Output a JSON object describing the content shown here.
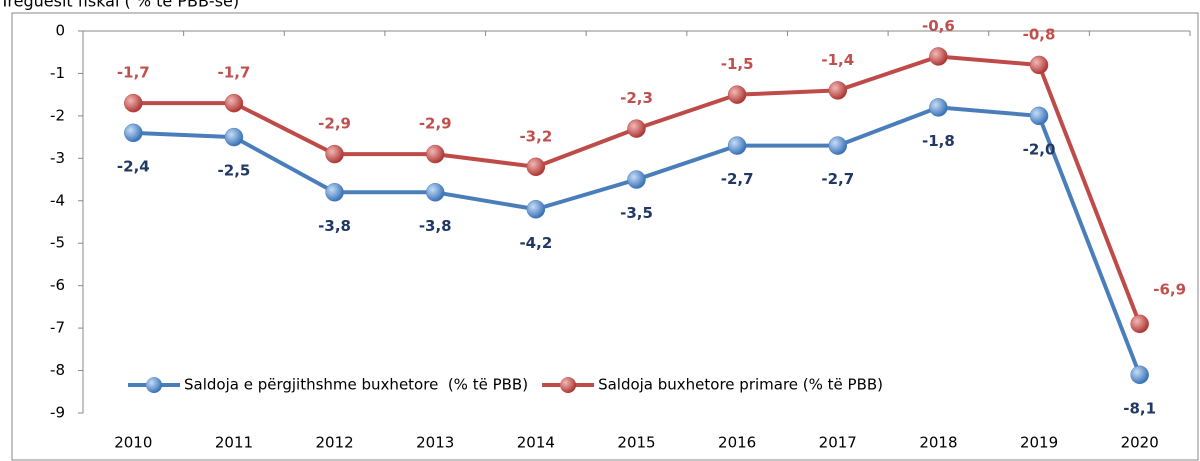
{
  "chart_data": {
    "type": "line",
    "title": "Treguesit fiskal ( % të PBB-së)",
    "categories": [
      "2010",
      "2011",
      "2012",
      "2013",
      "2014",
      "2015",
      "2016",
      "2017",
      "2018",
      "2019",
      "2020"
    ],
    "series": [
      {
        "name": "Saldoja e përgjithshme buxhetore  (% të PBB)",
        "color": "#4a7ebb",
        "label_color": "#1f3864",
        "values": [
          -2.4,
          -2.5,
          -3.8,
          -3.8,
          -4.2,
          -3.5,
          -2.7,
          -2.7,
          -1.8,
          -2.0,
          -8.1
        ],
        "value_labels": [
          "-2,4",
          "-2,5",
          "-3,8",
          "-3,8",
          "-4,2",
          "-3,5",
          "-2,7",
          "-2,7",
          "-1,8",
          "-2,0",
          "-8,1"
        ]
      },
      {
        "name": "Saldoja buxhetore primare (% të PBB)",
        "color": "#be4b48",
        "label_color": "#c0504d",
        "values": [
          -1.7,
          -1.7,
          -2.9,
          -2.9,
          -3.2,
          -2.3,
          -1.5,
          -1.4,
          -0.6,
          -0.8,
          -6.9
        ],
        "value_labels": [
          "-1,7",
          "-1,7",
          "-2,9",
          "-2,9",
          "-3,2",
          "-2,3",
          "-1,5",
          "-1,4",
          "-0,6",
          "-0,8",
          "-6,9"
        ]
      }
    ],
    "ylim": [
      -9,
      0
    ],
    "yticks": [
      0,
      -1,
      -2,
      -3,
      -4,
      -5,
      -6,
      -7,
      -8,
      -9
    ],
    "legend": "lower left"
  }
}
